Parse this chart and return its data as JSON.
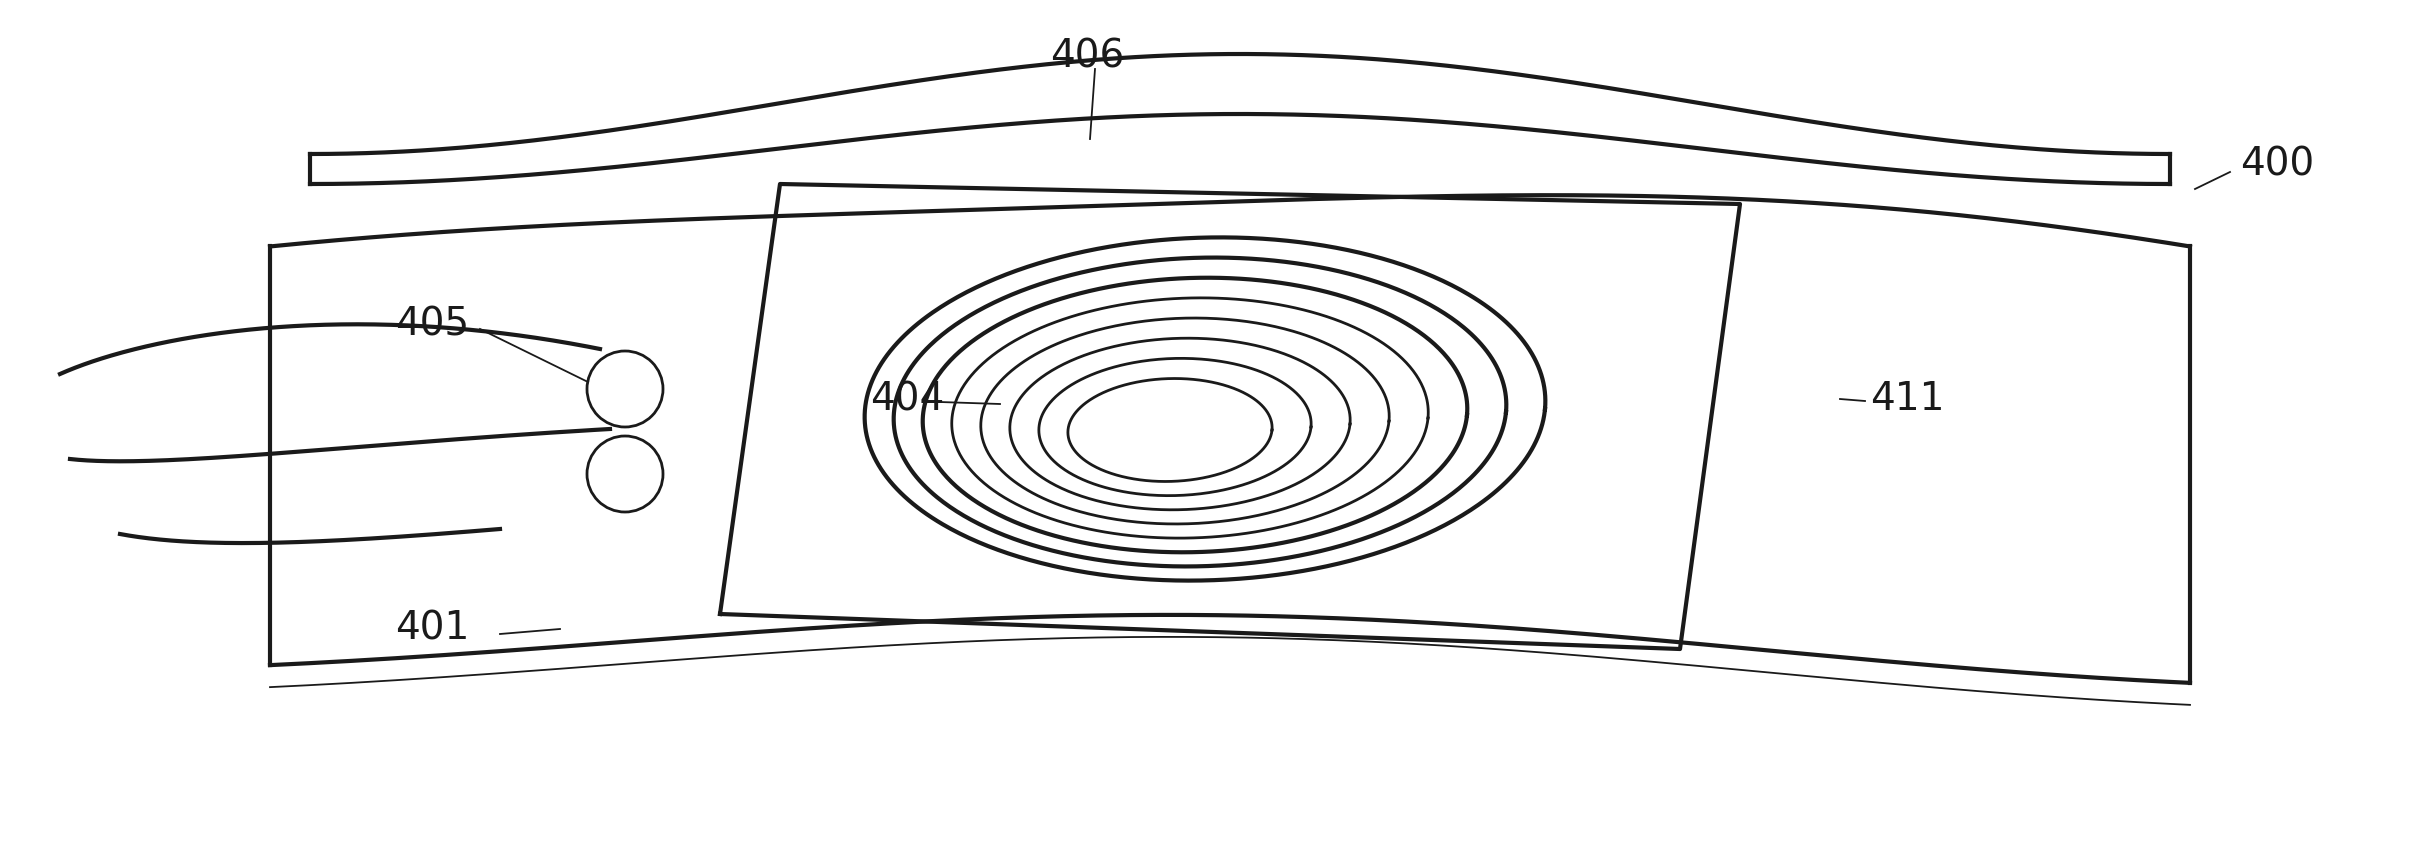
{
  "background_color": "#ffffff",
  "line_color": "#1a1a1a",
  "lw_thick": 3.0,
  "lw_med": 2.0,
  "lw_thin": 1.3,
  "fig_width": 24.23,
  "fig_height": 8.44
}
